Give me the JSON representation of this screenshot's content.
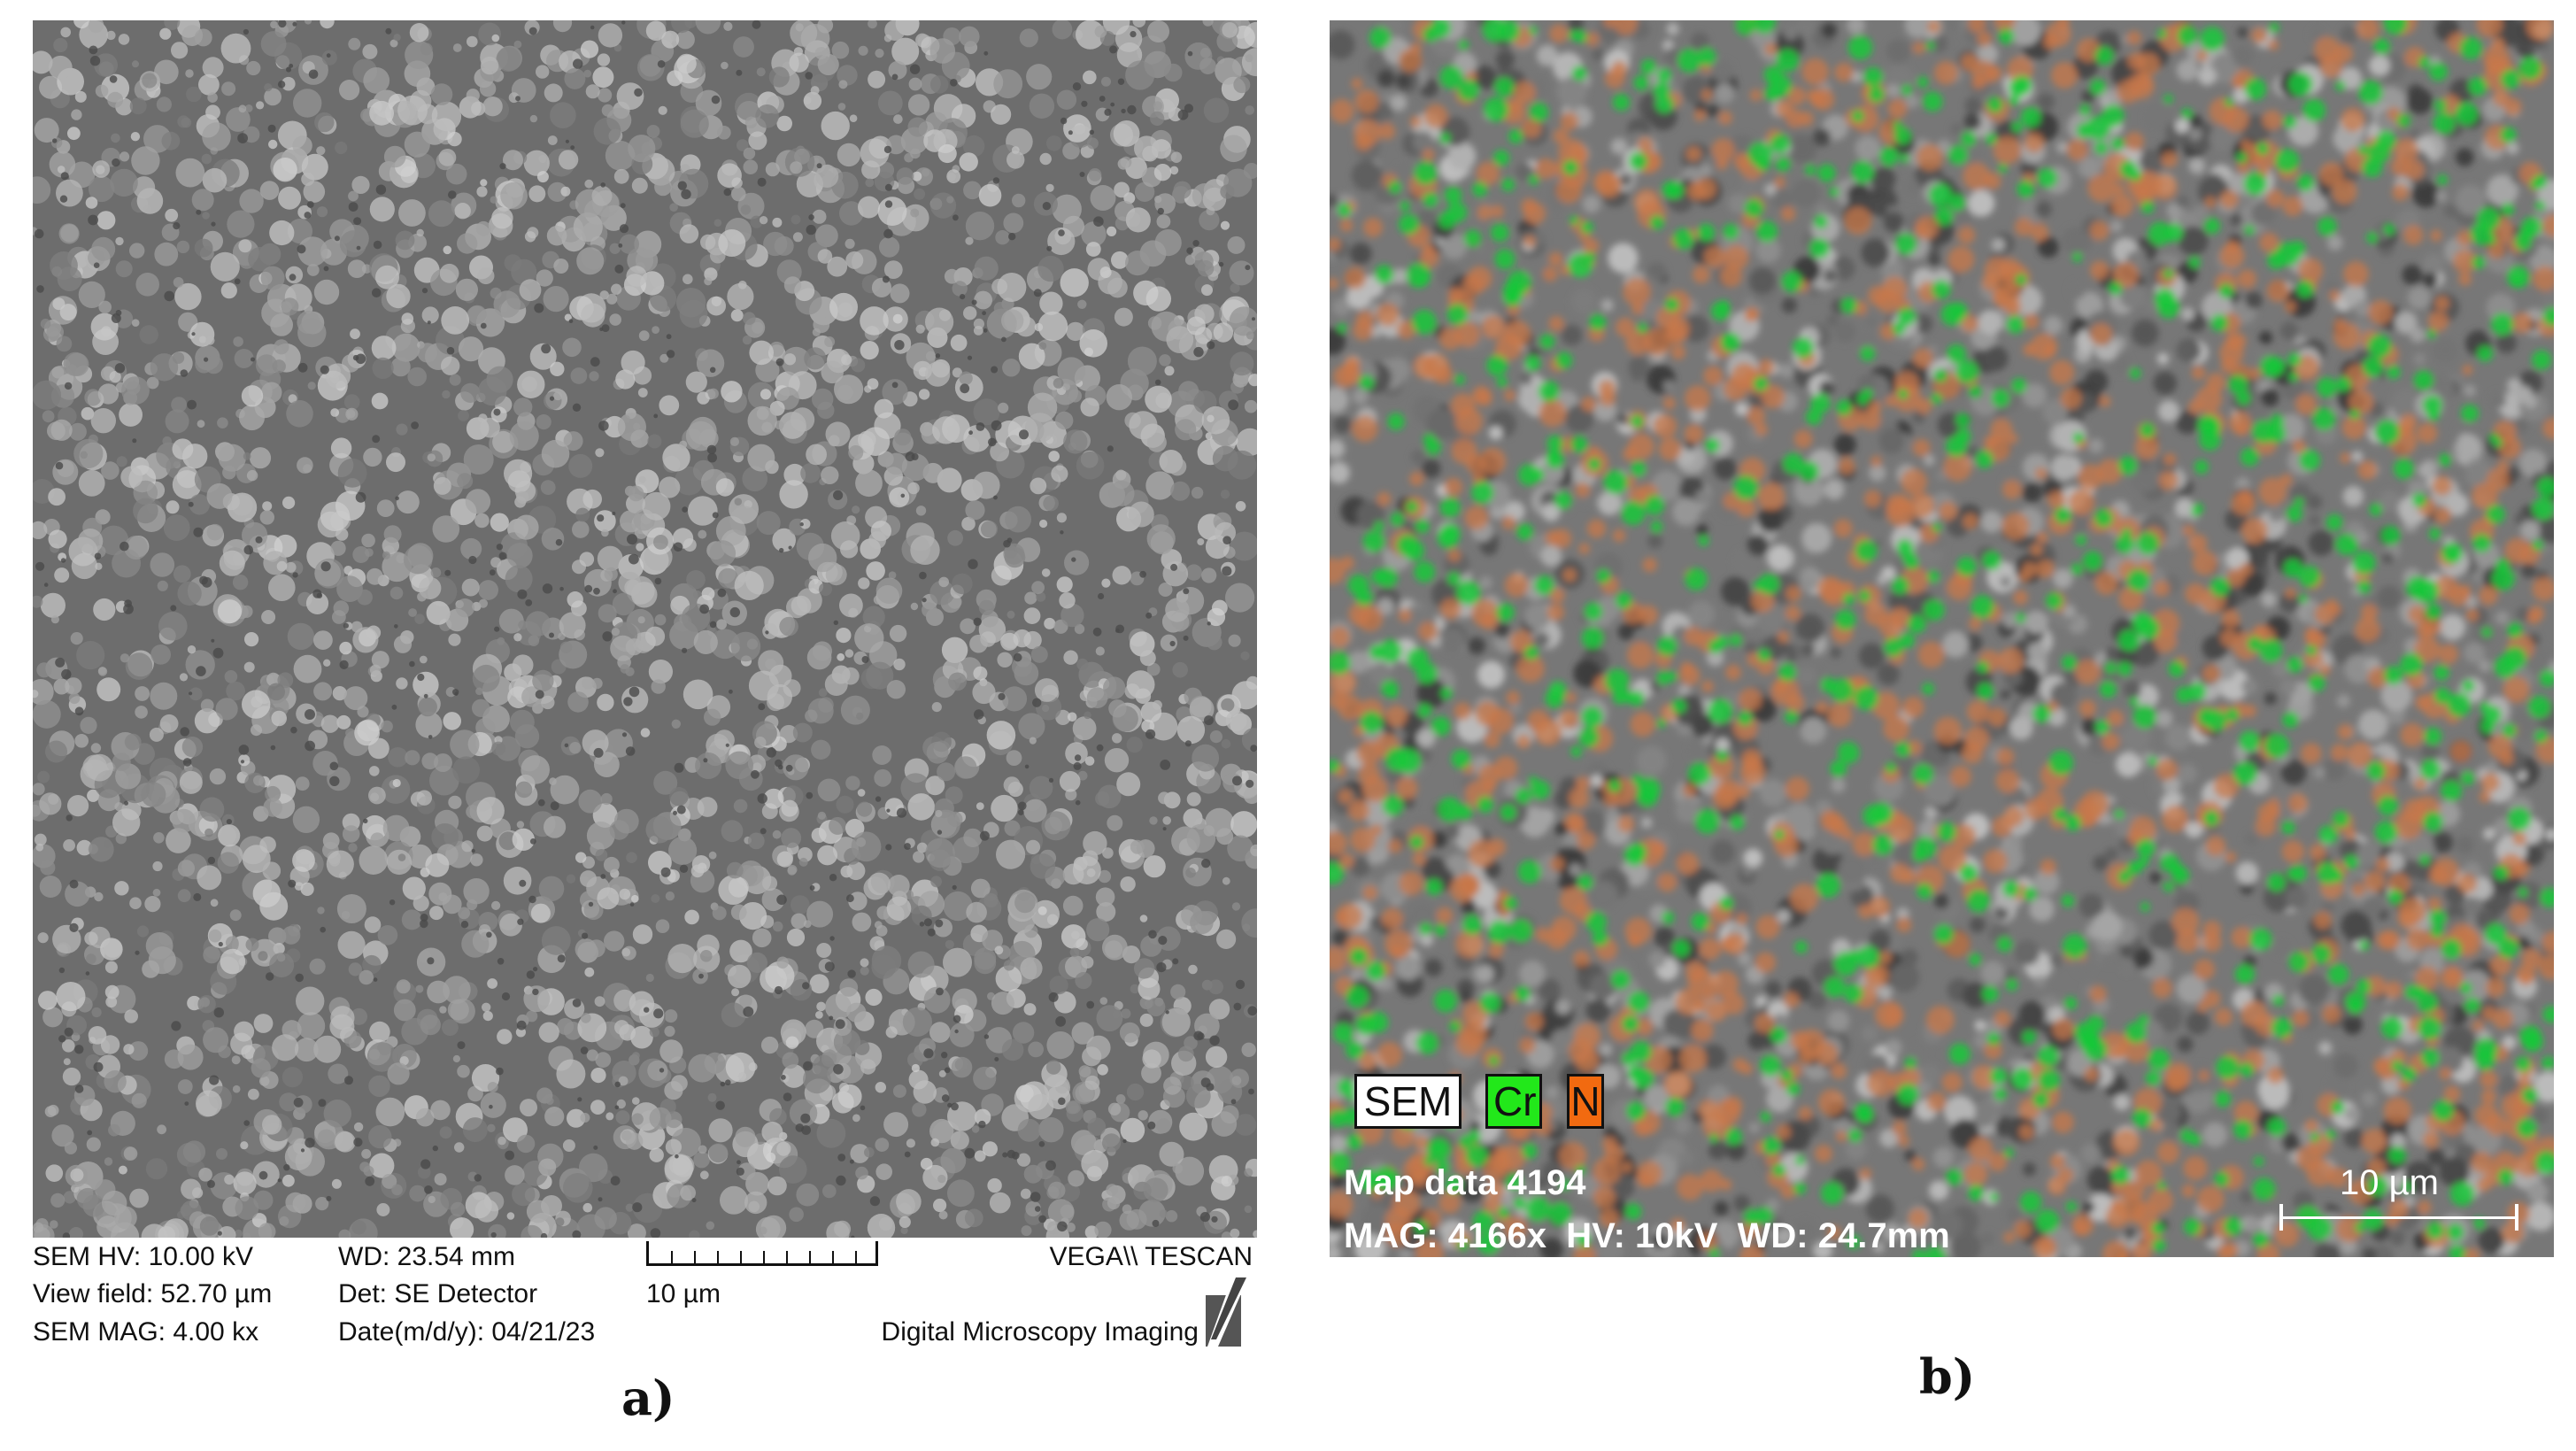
{
  "panel_a": {
    "info": {
      "hv": "SEM HV: 10.00 kV",
      "view_field": "View field: 52.70 µm",
      "mag": "SEM MAG: 4.00 kx",
      "wd": "WD: 23.54 mm",
      "det": "Det: SE Detector",
      "date": "Date(m/d/y): 04/21/23",
      "scale": "10 µm",
      "brand": "VEGA\\\\ TESCAN",
      "imaging": "Digital Microscopy Imaging"
    },
    "label": "a)",
    "colors": {
      "background": "#6d6d6d",
      "particles": "#b0b0b0"
    }
  },
  "panel_b": {
    "legend": [
      {
        "label": "SEM",
        "color": "#ffffff"
      },
      {
        "label": "Cr",
        "color": "#22e81a"
      },
      {
        "label": "N",
        "color": "#f26a10"
      }
    ],
    "map_data": "Map data 4194",
    "params": "MAG: 4166x  HV: 10kV  WD: 24.7mm",
    "scale": "10 µm",
    "label": "b)",
    "colors": {
      "cr": "#18c83a",
      "n": "#c8784a",
      "background": "#777777"
    }
  }
}
